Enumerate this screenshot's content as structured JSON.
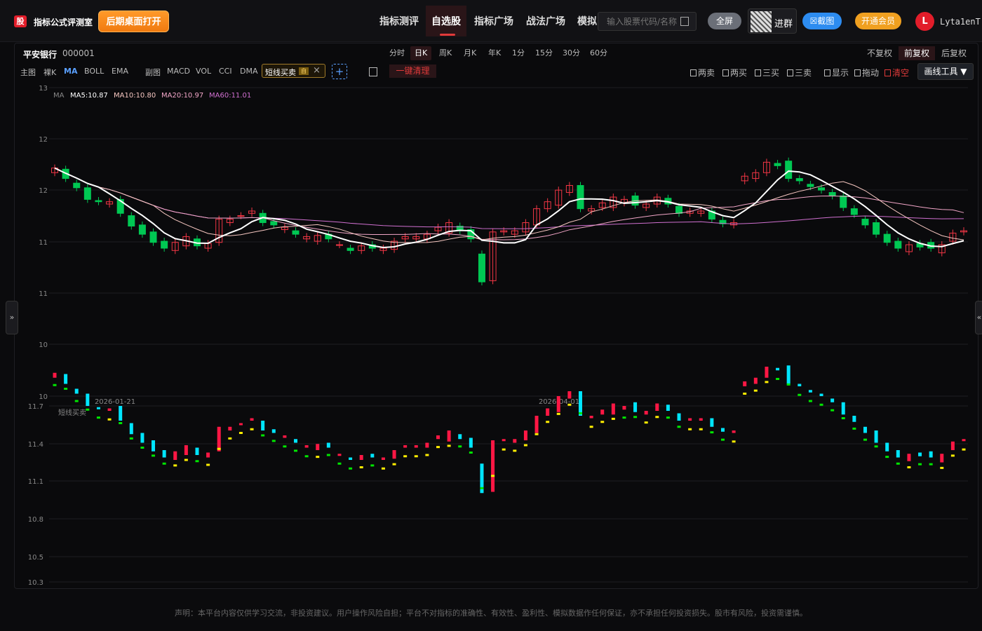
{
  "header": {
    "logo": "股",
    "brand": "指标公式评测室",
    "desktop_btn": "后期桌面打开",
    "nav": [
      "指标测评",
      "自选股",
      "指标广场",
      "战法广场",
      "模拟盘"
    ],
    "nav_active": 1,
    "search_placeholder": "输入股票代码/名称",
    "fullscreen": "全屏",
    "group": "进群",
    "screenshot": "截图",
    "vip": "开通会员",
    "avatar_letter": "L",
    "username": "Lyta1enT"
  },
  "stock": {
    "name": "平安银行",
    "code": "000001"
  },
  "periods": [
    "分时",
    "日K",
    "周K",
    "月K",
    "年K",
    "1分",
    "15分",
    "30分",
    "60分"
  ],
  "period_active": 1,
  "adjust": [
    "不复权",
    "前复权",
    "后复权"
  ],
  "adjust_active": 1,
  "indicators_main": [
    "主图",
    "裸K",
    "MA",
    "BOLL",
    "EMA"
  ],
  "indicators_sub": [
    "副图",
    "MACD",
    "VOL",
    "CCI",
    "DMA"
  ],
  "active_tag": {
    "label": "短线买卖",
    "badge": "自"
  },
  "clear_label": "一键清理",
  "tools": [
    "两卖",
    "两买",
    "三买",
    "三卖",
    "显示",
    "拖动",
    "清空"
  ],
  "draw_tools": "画线工具 ▼",
  "ma_legend": {
    "title": "MA",
    "ma5": "MA5:10.87",
    "ma10": "MA10:10.80",
    "ma20": "MA20:10.97",
    "ma60": "MA60:11.01"
  },
  "colors": {
    "up": "#f23645",
    "down": "#00c853",
    "ma5": "#ffffff",
    "ma10": "#f5c6c0",
    "ma20": "#f2a6c8",
    "ma60": "#d070d0",
    "sub_up": "#ff1744",
    "sub_down": "#00e5ff",
    "sub_yellow": "#ffee00",
    "sub_green": "#00e600"
  },
  "chart_data": {
    "type": "candlestick",
    "y_ticks_main": [
      "13",
      "12",
      "12",
      "11",
      "11",
      "10",
      "10"
    ],
    "y_ticks_sub": [
      "11.7",
      "11.4",
      "11.1",
      "10.8",
      "10.5",
      "10.3"
    ],
    "x_ticks": [
      "2026-01-21",
      "2026-04-01"
    ],
    "sub_title": "短线买卖",
    "close": [
      11.99,
      11.9,
      11.82,
      11.72,
      11.7,
      11.7,
      11.6,
      11.49,
      11.42,
      11.35,
      11.3,
      11.35,
      11.4,
      11.32,
      11.34,
      11.55,
      11.55,
      11.58,
      11.62,
      11.52,
      11.5,
      11.48,
      11.42,
      11.4,
      11.41,
      11.38,
      11.33,
      11.28,
      11.32,
      11.3,
      11.3,
      11.36,
      11.4,
      11.4,
      11.42,
      11.48,
      11.52,
      11.45,
      11.38,
      11.01,
      11.44,
      11.45,
      11.45,
      11.52,
      11.64,
      11.7,
      11.8,
      11.84,
      11.64,
      11.64,
      11.69,
      11.74,
      11.72,
      11.67,
      11.68,
      11.74,
      11.68,
      11.6,
      11.62,
      11.62,
      11.55,
      11.51,
      11.52,
      11.92,
      11.95,
      12.04,
      12.01,
      11.9,
      11.88,
      11.83,
      11.8,
      11.75,
      11.65,
      11.59,
      11.5,
      11.42,
      11.35,
      11.3,
      11.33,
      11.31,
      11.3,
      11.33,
      11.43,
      11.45
    ],
    "open": [
      11.95,
      11.98,
      11.86,
      11.82,
      11.71,
      11.68,
      11.72,
      11.58,
      11.5,
      11.44,
      11.36,
      11.28,
      11.32,
      11.38,
      11.3,
      11.35,
      11.52,
      11.58,
      11.6,
      11.6,
      11.53,
      11.46,
      11.45,
      11.38,
      11.36,
      11.42,
      11.33,
      11.3,
      11.28,
      11.33,
      11.28,
      11.29,
      11.38,
      11.38,
      11.38,
      11.45,
      11.43,
      11.49,
      11.46,
      11.25,
      11.02,
      11.44,
      11.42,
      11.44,
      11.5,
      11.64,
      11.67,
      11.78,
      11.84,
      11.62,
      11.65,
      11.65,
      11.69,
      11.75,
      11.65,
      11.68,
      11.73,
      11.66,
      11.6,
      11.6,
      11.62,
      11.54,
      11.5,
      11.88,
      11.9,
      11.95,
      12.03,
      12.05,
      11.9,
      11.85,
      11.82,
      11.78,
      11.75,
      11.64,
      11.55,
      11.52,
      11.42,
      11.36,
      11.27,
      11.34,
      11.35,
      11.26,
      11.36,
      11.44
    ]
  }
}
